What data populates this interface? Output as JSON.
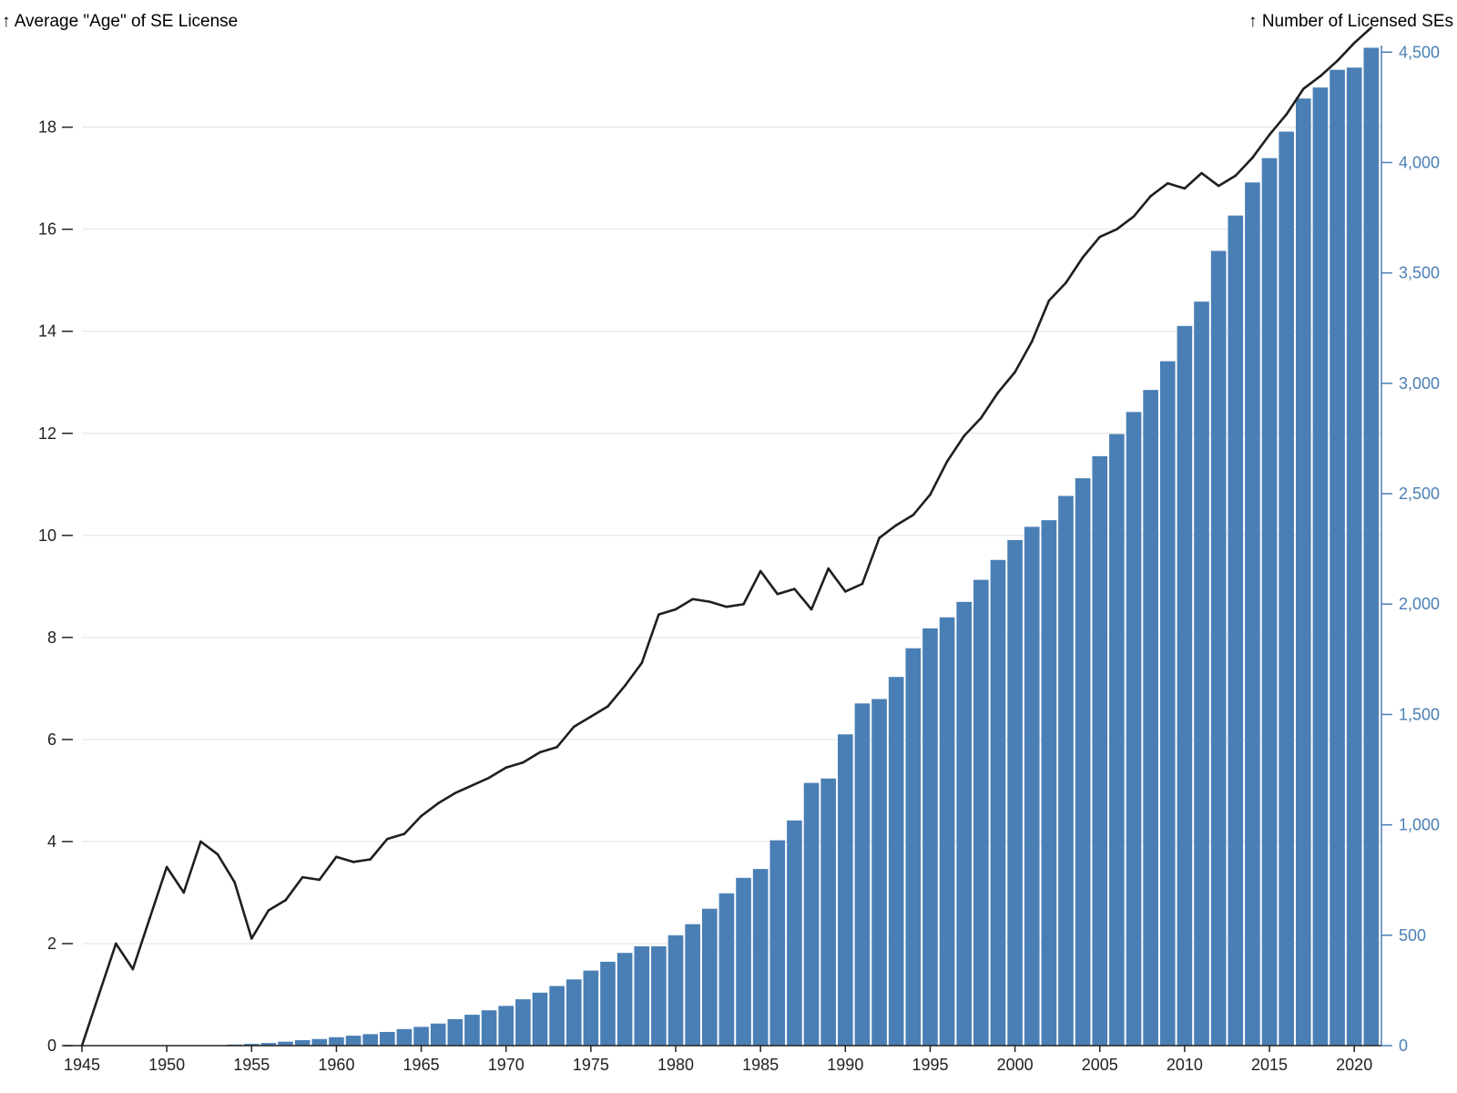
{
  "colors": {
    "bars": "#4a7fb5",
    "line": "#1f1f1f",
    "left_axis": "#222222",
    "right_axis": "#4a7fb5",
    "grid": "#e3e3e3"
  },
  "chart_data": {
    "type": "bar",
    "combo": "bar+line",
    "title": "",
    "left_axis_title": "↑ Average \"Age\" of SE License",
    "right_axis_title": "↑ Number of Licensed SEs",
    "x_ticks": [
      "1945",
      "1950",
      "1955",
      "1960",
      "1965",
      "1970",
      "1975",
      "1980",
      "1985",
      "1990",
      "1995",
      "2000",
      "2005",
      "2010",
      "2015",
      "2020"
    ],
    "left_ticks": [
      "0",
      "2",
      "4",
      "6",
      "8",
      "10",
      "12",
      "14",
      "16",
      "18"
    ],
    "right_ticks": [
      "0",
      "500",
      "1,000",
      "1,500",
      "2,000",
      "2,500",
      "3,000",
      "3,500",
      "4,000",
      "4,500"
    ],
    "left_ylim": [
      0,
      19.6
    ],
    "right_ylim": [
      0,
      4530
    ],
    "xlim": [
      1945,
      2021.6
    ],
    "grid": true,
    "x": [
      1945,
      1946,
      1947,
      1948,
      1949,
      1950,
      1951,
      1952,
      1953,
      1954,
      1955,
      1956,
      1957,
      1958,
      1959,
      1960,
      1961,
      1962,
      1963,
      1964,
      1965,
      1966,
      1967,
      1968,
      1969,
      1970,
      1971,
      1972,
      1973,
      1974,
      1975,
      1976,
      1977,
      1978,
      1979,
      1980,
      1981,
      1982,
      1983,
      1984,
      1985,
      1986,
      1987,
      1988,
      1989,
      1990,
      1991,
      1992,
      1993,
      1994,
      1995,
      1996,
      1997,
      1998,
      1999,
      2000,
      2001,
      2002,
      2003,
      2004,
      2005,
      2006,
      2007,
      2008,
      2009,
      2010,
      2011,
      2012,
      2013,
      2014,
      2015,
      2016,
      2017,
      2018,
      2019,
      2020,
      2021
    ],
    "series": [
      {
        "kind": "bar",
        "axis": "right",
        "values": [
          0,
          0,
          0,
          0,
          0,
          0,
          0,
          0,
          0,
          5,
          8,
          12,
          18,
          25,
          30,
          38,
          45,
          52,
          62,
          75,
          85,
          100,
          120,
          140,
          160,
          180,
          210,
          240,
          270,
          300,
          340,
          380,
          420,
          450,
          450,
          500,
          550,
          620,
          690,
          760,
          800,
          930,
          1020,
          1190,
          1210,
          1410,
          1550,
          1570,
          1670,
          1800,
          1890,
          1940,
          2010,
          2110,
          2200,
          2290,
          2350,
          2380,
          2490,
          2570,
          2670,
          2770,
          2870,
          2970,
          3100,
          3260,
          3370,
          3600,
          3760,
          3910,
          4020,
          4140,
          4290,
          4340,
          4420,
          4430,
          4520
        ]
      },
      {
        "kind": "line",
        "axis": "left",
        "values": [
          0,
          1,
          2,
          1.5,
          2.5,
          3.5,
          3,
          4,
          3.75,
          3.2,
          2.1,
          2.65,
          2.85,
          3.3,
          3.25,
          3.7,
          3.6,
          3.65,
          4.05,
          4.15,
          4.5,
          4.75,
          4.95,
          5.1,
          5.25,
          5.45,
          5.55,
          5.75,
          5.85,
          6.25,
          6.45,
          6.65,
          7.05,
          7.5,
          8.45,
          8.55,
          8.75,
          8.7,
          8.6,
          8.65,
          9.3,
          8.85,
          8.95,
          8.55,
          9.35,
          8.9,
          9.05,
          9.95,
          10.2,
          10.4,
          10.8,
          11.45,
          11.95,
          12.3,
          12.8,
          13.2,
          13.8,
          14.6,
          14.95,
          15.45,
          15.85,
          16.0,
          16.25,
          16.65,
          16.9,
          16.8,
          17.1,
          16.85,
          17.05,
          17.4,
          17.85,
          18.25,
          18.75,
          19.0,
          19.3,
          19.65,
          19.95
        ]
      }
    ]
  }
}
